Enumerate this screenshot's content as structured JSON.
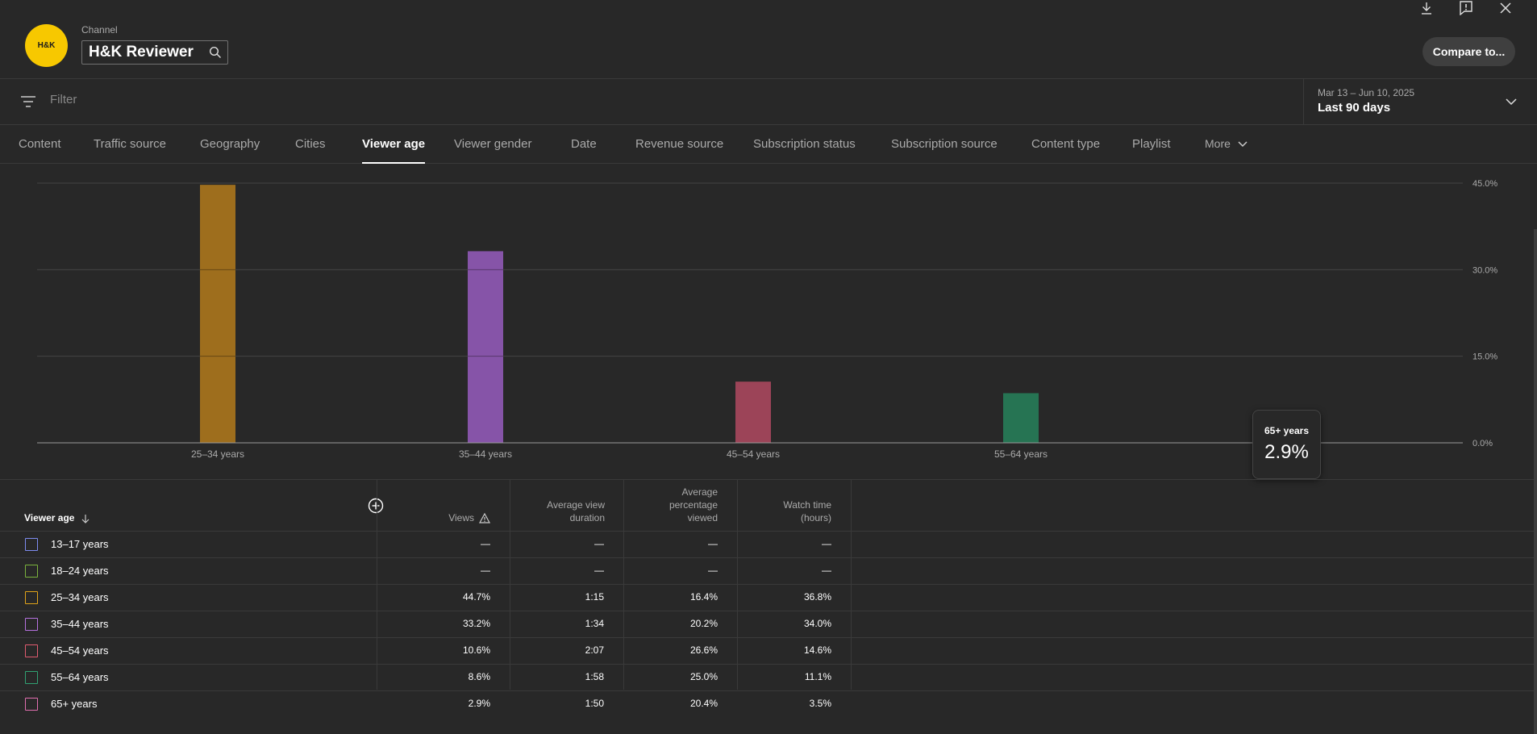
{
  "header": {
    "channel_label": "Channel",
    "channel_name": "H&K Reviewer",
    "logo_text": "H&K",
    "compare_button": "Compare to..."
  },
  "filter": {
    "placeholder": "Filter"
  },
  "date": {
    "range": "Mar 13 – Jun 10, 2025",
    "label": "Last 90 days"
  },
  "tabs": [
    {
      "label": "Content",
      "active": false
    },
    {
      "label": "Traffic source",
      "active": false
    },
    {
      "label": "Geography",
      "active": false
    },
    {
      "label": "Cities",
      "active": false
    },
    {
      "label": "Viewer age",
      "active": true
    },
    {
      "label": "Viewer gender",
      "active": false
    },
    {
      "label": "Date",
      "active": false
    },
    {
      "label": "Revenue source",
      "active": false
    },
    {
      "label": "Subscription status",
      "active": false
    },
    {
      "label": "Subscription source",
      "active": false
    },
    {
      "label": "Content type",
      "active": false
    },
    {
      "label": "Playlist",
      "active": false
    },
    {
      "label": "More",
      "active": false
    }
  ],
  "chart_data": {
    "type": "bar",
    "categories": [
      "25–34 years",
      "35–44 years",
      "45–54 years",
      "55–64 years",
      "65+ years"
    ],
    "values": [
      44.7,
      33.2,
      10.6,
      8.6,
      2.9
    ],
    "colors": [
      "#9e6e1d",
      "#8654a8",
      "#9c4458",
      "#267453",
      "#c04d8c"
    ],
    "y_ticks": [
      "45.0%",
      "30.0%",
      "15.0%",
      "0.0%"
    ],
    "ylim": [
      0,
      45
    ],
    "grid": true
  },
  "tooltip": {
    "label": "65+ years",
    "value": "2.9%"
  },
  "table": {
    "headers": {
      "dimension": "Viewer age",
      "views": "Views",
      "avg_view_duration": [
        "Average view",
        "duration"
      ],
      "avg_pct_viewed": [
        "Average",
        "percentage",
        "viewed"
      ],
      "watch_time": [
        "Watch time",
        "(hours)"
      ]
    },
    "rows": [
      {
        "label": "13–17 years",
        "color": "#7e8cf0",
        "views": "—",
        "duration": "—",
        "pct": "—",
        "watch": "—"
      },
      {
        "label": "18–24 years",
        "color": "#7bb33d",
        "views": "—",
        "duration": "—",
        "pct": "—",
        "watch": "—"
      },
      {
        "label": "25–34 years",
        "color": "#e0a319",
        "views": "44.7%",
        "duration": "1:15",
        "pct": "16.4%",
        "watch": "36.8%"
      },
      {
        "label": "35–44 years",
        "color": "#b772e0",
        "views": "33.2%",
        "duration": "1:34",
        "pct": "20.2%",
        "watch": "34.0%"
      },
      {
        "label": "45–54 years",
        "color": "#e05b70",
        "views": "10.6%",
        "duration": "2:07",
        "pct": "26.6%",
        "watch": "14.6%"
      },
      {
        "label": "55–64 years",
        "color": "#31a172",
        "views": "8.6%",
        "duration": "1:58",
        "pct": "25.0%",
        "watch": "11.1%"
      },
      {
        "label": "65+ years",
        "color": "#e06fb0",
        "views": "2.9%",
        "duration": "1:50",
        "pct": "20.4%",
        "watch": "3.5%"
      }
    ]
  }
}
